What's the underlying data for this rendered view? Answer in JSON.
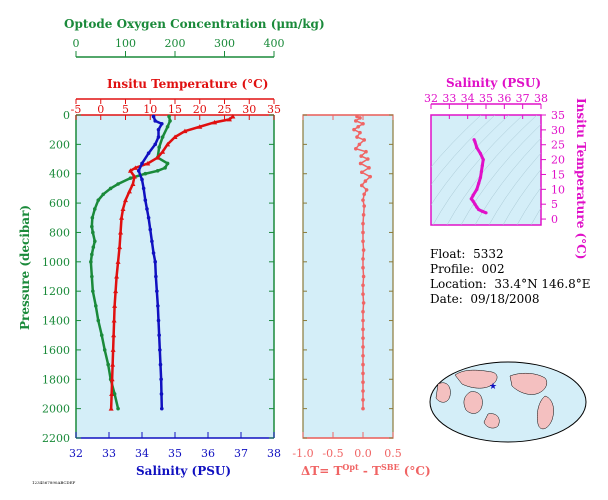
{
  "chart_data": [
    {
      "type": "line",
      "panel": "profile",
      "axes": {
        "oxygen": {
          "label": "Optode Oxygen Concentration (μm/kg)",
          "ticks": [
            0,
            100,
            200,
            300,
            400
          ],
          "range": [
            0,
            400
          ],
          "color": "#1a8a3a"
        },
        "temperature": {
          "label": "Insitu Temperature (°C)",
          "ticks": [
            -5,
            0,
            5,
            10,
            15,
            20,
            25,
            30,
            35
          ],
          "range": [
            -5,
            35
          ],
          "color": "#e01010"
        },
        "salinity": {
          "label": "Salinity (PSU)",
          "ticks": [
            32,
            33,
            34,
            35,
            36,
            37,
            38
          ],
          "range": [
            32,
            38
          ],
          "color": "#1010c0"
        },
        "pressure": {
          "label": "Pressure (decibar)",
          "ticks": [
            0,
            200,
            400,
            600,
            800,
            1000,
            1200,
            1400,
            1600,
            1800,
            2000,
            2200
          ],
          "range": [
            0,
            2200
          ],
          "color": "#1a8a3a"
        }
      },
      "series": [
        {
          "variable": "oxygen",
          "color": "#1a8a3a",
          "marker": "dot",
          "points": [
            [
              188,
              10
            ],
            [
              190,
              40
            ],
            [
              185,
              80
            ],
            [
              175,
              150
            ],
            [
              168,
              220
            ],
            [
              165,
              290
            ],
            [
              185,
              330
            ],
            [
              180,
              360
            ],
            [
              165,
              380
            ],
            [
              140,
              400
            ],
            [
              110,
              430
            ],
            [
              85,
              470
            ],
            [
              70,
              500
            ],
            [
              55,
              540
            ],
            [
              45,
              580
            ],
            [
              38,
              640
            ],
            [
              33,
              700
            ],
            [
              32,
              760
            ],
            [
              34,
              800
            ],
            [
              38,
              860
            ],
            [
              35,
              900
            ],
            [
              32,
              950
            ],
            [
              30,
              1000
            ],
            [
              32,
              1100
            ],
            [
              34,
              1200
            ],
            [
              40,
              1300
            ],
            [
              45,
              1400
            ],
            [
              52,
              1500
            ],
            [
              58,
              1600
            ],
            [
              65,
              1700
            ],
            [
              70,
              1800
            ],
            [
              78,
              1900
            ],
            [
              85,
              2000
            ]
          ]
        },
        {
          "variable": "temperature",
          "color": "#e01010",
          "marker": "triangle",
          "points": [
            [
              26.7,
              10
            ],
            [
              26,
              30
            ],
            [
              23,
              50
            ],
            [
              20,
              80
            ],
            [
              17,
              110
            ],
            [
              15,
              150
            ],
            [
              13.5,
              200
            ],
            [
              12.5,
              250
            ],
            [
              11.5,
              290
            ],
            [
              9.5,
              330
            ],
            [
              7,
              360
            ],
            [
              6,
              380
            ],
            [
              6.8,
              420
            ],
            [
              6.5,
              470
            ],
            [
              5.8,
              520
            ],
            [
              5,
              580
            ],
            [
              4.5,
              640
            ],
            [
              4.2,
              700
            ],
            [
              4,
              800
            ],
            [
              3.8,
              900
            ],
            [
              3.5,
              1000
            ],
            [
              3.2,
              1100
            ],
            [
              3,
              1200
            ],
            [
              2.8,
              1300
            ],
            [
              2.7,
              1400
            ],
            [
              2.6,
              1500
            ],
            [
              2.5,
              1600
            ],
            [
              2.4,
              1700
            ],
            [
              2.3,
              1800
            ],
            [
              2.2,
              1900
            ],
            [
              2.1,
              2000
            ]
          ]
        },
        {
          "variable": "salinity",
          "color": "#1010c0",
          "marker": "dot",
          "points": [
            [
              34.35,
              10
            ],
            [
              34.4,
              40
            ],
            [
              34.6,
              60
            ],
            [
              34.5,
              100
            ],
            [
              34.5,
              150
            ],
            [
              34.4,
              200
            ],
            [
              34.2,
              260
            ],
            [
              34.0,
              330
            ],
            [
              33.9,
              380
            ],
            [
              34.0,
              440
            ],
            [
              34.05,
              500
            ],
            [
              34.1,
              580
            ],
            [
              34.15,
              640
            ],
            [
              34.2,
              700
            ],
            [
              34.25,
              780
            ],
            [
              34.3,
              860
            ],
            [
              34.35,
              940
            ],
            [
              34.4,
              1000
            ],
            [
              34.42,
              1100
            ],
            [
              34.45,
              1200
            ],
            [
              34.48,
              1300
            ],
            [
              34.5,
              1400
            ],
            [
              34.52,
              1500
            ],
            [
              34.54,
              1600
            ],
            [
              34.56,
              1700
            ],
            [
              34.58,
              1800
            ],
            [
              34.59,
              1900
            ],
            [
              34.6,
              2000
            ]
          ]
        }
      ]
    },
    {
      "type": "scatter",
      "panel": "delta-t",
      "xlabel_main": "ΔT= T",
      "xlabel_sup1": "Opt",
      "xlabel_mid": " - T",
      "xlabel_sup2": "SBE",
      "xlabel_unit": " (°C)",
      "x_ticks": [
        "-1.0",
        "-0.5",
        "0.0",
        "0.5"
      ],
      "x_range": [
        -1.0,
        0.5
      ],
      "y_range": [
        0,
        2200
      ],
      "color": "#f06464",
      "points": [
        [
          -0.1,
          10
        ],
        [
          -0.05,
          20
        ],
        [
          -0.12,
          40
        ],
        [
          0.0,
          60
        ],
        [
          -0.08,
          80
        ],
        [
          -0.15,
          100
        ],
        [
          -0.05,
          120
        ],
        [
          -0.1,
          150
        ],
        [
          0.02,
          170
        ],
        [
          -0.06,
          200
        ],
        [
          -0.12,
          230
        ],
        [
          0.05,
          250
        ],
        [
          -0.03,
          280
        ],
        [
          0.08,
          300
        ],
        [
          -0.04,
          330
        ],
        [
          0.1,
          360
        ],
        [
          -0.02,
          390
        ],
        [
          0.12,
          420
        ],
        [
          0.04,
          450
        ],
        [
          -0.02,
          480
        ],
        [
          0.06,
          510
        ],
        [
          0.02,
          540
        ],
        [
          0.0,
          580
        ],
        [
          0.02,
          620
        ],
        [
          0.01,
          680
        ],
        [
          0.0,
          740
        ],
        [
          0.0,
          800
        ],
        [
          0.0,
          860
        ],
        [
          0.01,
          920
        ],
        [
          0.0,
          980
        ],
        [
          0.0,
          1040
        ],
        [
          0.01,
          1100
        ],
        [
          0.0,
          1160
        ],
        [
          0.0,
          1220
        ],
        [
          0.01,
          1280
        ],
        [
          0.0,
          1340
        ],
        [
          0.0,
          1400
        ],
        [
          0.0,
          1460
        ],
        [
          0.0,
          1520
        ],
        [
          0.0,
          1580
        ],
        [
          0.0,
          1640
        ],
        [
          0.0,
          1700
        ],
        [
          0.0,
          1760
        ],
        [
          0.0,
          1820
        ],
        [
          0.0,
          1880
        ],
        [
          0.0,
          1940
        ],
        [
          0.0,
          2000
        ]
      ]
    },
    {
      "type": "line",
      "panel": "t-s",
      "xlabel": "Salinity (PSU)",
      "ylabel": "Insitu Temperature (°C)",
      "x_ticks": [
        32,
        33,
        34,
        35,
        36,
        37,
        38
      ],
      "y_ticks": [
        0,
        5,
        10,
        15,
        20,
        25,
        30,
        35
      ],
      "x_range": [
        32,
        38
      ],
      "y_range": [
        -2,
        35
      ],
      "color": "#e010c8",
      "points": [
        [
          35.0,
          2.1
        ],
        [
          34.8,
          2.6
        ],
        [
          34.6,
          3.2
        ],
        [
          34.5,
          4.0
        ],
        [
          34.4,
          5.0
        ],
        [
          34.3,
          6.0
        ],
        [
          34.2,
          6.8
        ],
        [
          34.3,
          8.0
        ],
        [
          34.5,
          10.0
        ],
        [
          34.6,
          12.0
        ],
        [
          34.7,
          14.0
        ],
        [
          34.75,
          16.0
        ],
        [
          34.8,
          18.0
        ],
        [
          34.85,
          20.0
        ],
        [
          34.7,
          22.0
        ],
        [
          34.5,
          24.0
        ],
        [
          34.4,
          26.0
        ],
        [
          34.35,
          26.7
        ]
      ]
    }
  ],
  "info": {
    "float_label": "Float:",
    "float_value": "5332",
    "profile_label": "Profile:",
    "profile_value": "002",
    "location_label": "Location:",
    "location_value": "33.4°N  146.8°E",
    "date_label": "Date:",
    "date_value": "09/18/2008"
  },
  "map": {
    "marker_lon": 146.8,
    "marker_lat": 33.4,
    "marker_color": "#1010c0"
  },
  "footer_text": "1234567890ABCDEF"
}
